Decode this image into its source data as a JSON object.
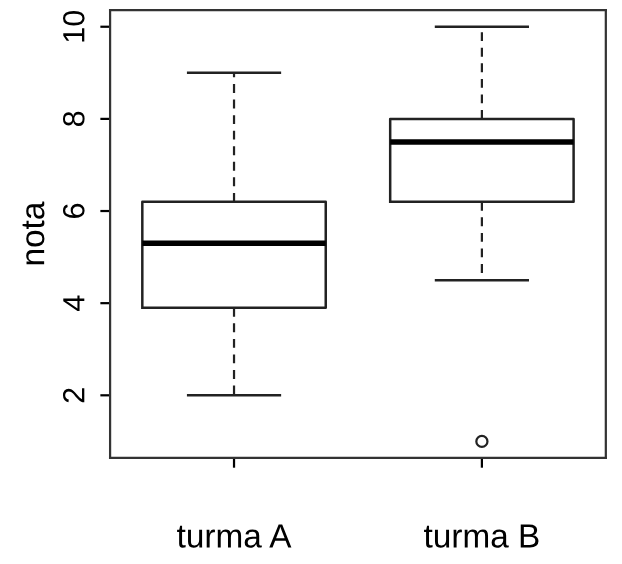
{
  "chart_data": {
    "type": "box",
    "ylabel": "nota",
    "categories": [
      "turma A",
      "turma B"
    ],
    "boxes": [
      {
        "low": 2,
        "q1": 3.9,
        "median": 5.3,
        "q3": 6.2,
        "high": 9
      },
      {
        "low": 4.5,
        "q1": 6.2,
        "median": 7.5,
        "q3": 8,
        "high": 10,
        "outliers": [
          1
        ]
      }
    ],
    "ylim": [
      0.64,
      10.36
    ],
    "yticks": [
      2,
      4,
      6,
      8,
      10
    ],
    "grid": false,
    "legend": false
  }
}
